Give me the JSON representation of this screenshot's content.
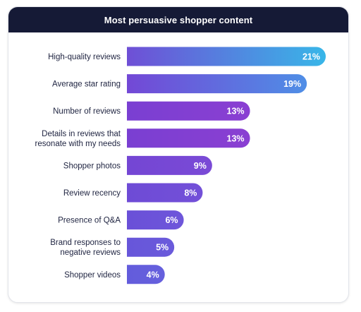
{
  "header": {
    "title": "Most persuasive shopper content"
  },
  "chart_data": {
    "type": "bar",
    "orientation": "horizontal",
    "title": "Most persuasive shopper content",
    "categories": [
      [
        "High-quality reviews"
      ],
      [
        "Average star rating"
      ],
      [
        "Number of reviews"
      ],
      [
        "Details in reviews that",
        "resonate with my needs"
      ],
      [
        "Shopper photos"
      ],
      [
        "Review recency"
      ],
      [
        "Presence of Q&A"
      ],
      [
        "Brand responses to",
        "negative reviews"
      ],
      [
        "Shopper videos"
      ]
    ],
    "values": [
      21,
      19,
      13,
      13,
      9,
      8,
      6,
      5,
      4
    ],
    "value_labels": [
      "21%",
      "19%",
      "13%",
      "13%",
      "9%",
      "8%",
      "6%",
      "5%",
      "4%"
    ],
    "unit": "%",
    "xlim": [
      0,
      21
    ],
    "grid": false,
    "legend": "none",
    "colors": {
      "header_bg": "#151a36",
      "bar_gradients": [
        [
          "#6f4fd6",
          "#38b6e8"
        ],
        [
          "#7348d6",
          "#4f8ee6"
        ],
        [
          "#7a3fd2",
          "#8a3fd2"
        ],
        [
          "#7a3fd2",
          "#8a3fd2"
        ],
        [
          "#7446d4",
          "#7a4ad6"
        ],
        [
          "#6e4bd6",
          "#7350d8"
        ],
        [
          "#6a50d8",
          "#6e56da"
        ],
        [
          "#6756da",
          "#6a5adb"
        ],
        [
          "#635cdc",
          "#6660dd"
        ]
      ]
    }
  }
}
